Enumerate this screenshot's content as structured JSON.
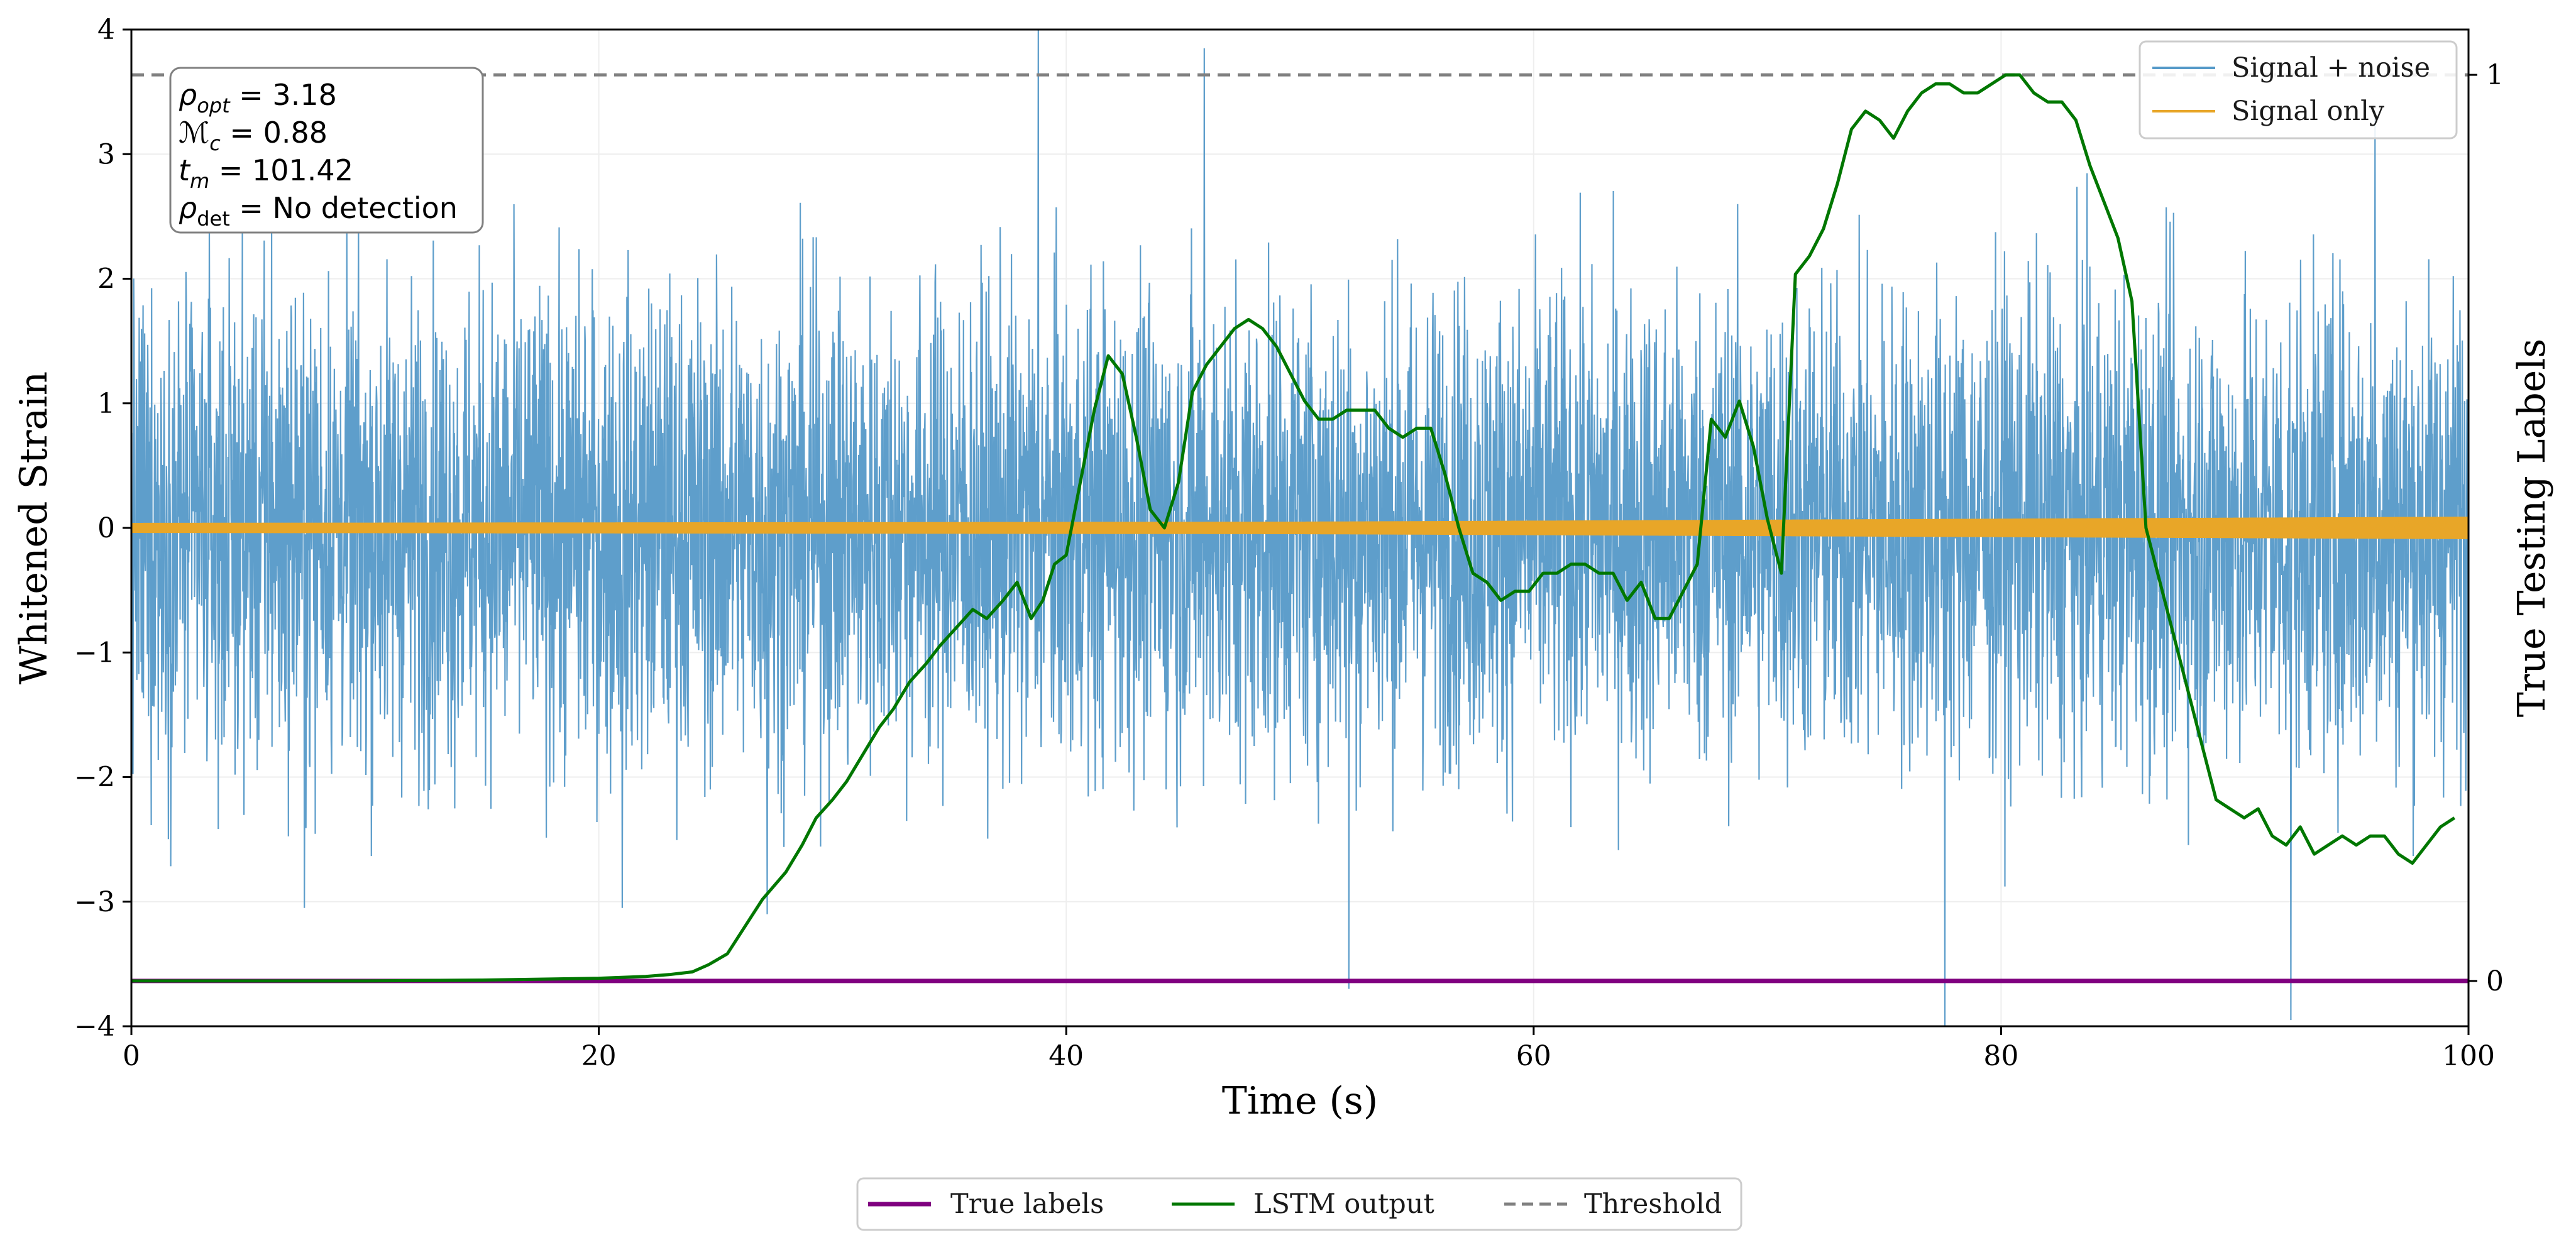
{
  "chart_data": {
    "type": "line",
    "xlabel": "Time (s)",
    "ylabel_left": "Whitened Strain",
    "ylabel_right": "True Testing Labels",
    "xlim": [
      0,
      100
    ],
    "ylim_left": [
      -4,
      4
    ],
    "ylim_right": [
      -0.05,
      1.05
    ],
    "x_ticks": [
      0,
      20,
      40,
      60,
      80,
      100
    ],
    "x_tick_labels": [
      "0",
      "20",
      "40",
      "60",
      "80",
      "100"
    ],
    "y_left_ticks": [
      -4,
      -3,
      -2,
      -1,
      0,
      1,
      2,
      3,
      4
    ],
    "y_left_tick_labels": [
      "−4",
      "−3",
      "−2",
      "−1",
      "0",
      "1",
      "2",
      "3",
      "4"
    ],
    "y_right_ticks": [
      0,
      1
    ],
    "y_right_tick_labels": [
      "0",
      "1"
    ],
    "grid": true,
    "annotation": {
      "lines": [
        {
          "sym": "ρ",
          "sub": "opt",
          "rest": " = 3.18"
        },
        {
          "sym": "ℳ",
          "sub": "c",
          "rest": " = 0.88"
        },
        {
          "sym": "t",
          "sub": "m",
          "rest": " = 101.42"
        },
        {
          "sym": "ρ",
          "sub": "det",
          "rest": " = No detection"
        }
      ]
    },
    "legend_top_right": [
      "Signal + noise",
      "Signal only"
    ],
    "legend_bottom": [
      "True labels",
      "LSTM output",
      "Threshold"
    ],
    "series": [
      {
        "name": "Signal + noise",
        "axis": "left",
        "color": "#5599c8",
        "typical_range": [
          -2.0,
          2.0
        ],
        "peaks": [
          [
            38.8,
            4.0
          ],
          [
            45.9,
            3.85
          ],
          [
            52.1,
            -3.7
          ],
          [
            77.6,
            -4.0
          ],
          [
            92.4,
            -3.95
          ],
          [
            27.2,
            -3.1
          ],
          [
            7.4,
            -3.05
          ],
          [
            21.0,
            -3.05
          ],
          [
            6.0,
            2.4
          ],
          [
            96.0,
            3.3
          ]
        ]
      },
      {
        "name": "Signal only",
        "axis": "left",
        "color": "#e8a628",
        "envelope": [
          [
            0,
            0.04
          ],
          [
            50,
            0.05
          ],
          [
            100,
            0.09
          ]
        ]
      },
      {
        "name": "True labels",
        "axis": "right",
        "color": "#800080",
        "x": [
          0,
          100
        ],
        "values": [
          0,
          0
        ]
      },
      {
        "name": "LSTM output",
        "axis": "right",
        "color": "#007700",
        "x": [
          0,
          10,
          15,
          20,
          22,
          23,
          24,
          24.7,
          25.5,
          26,
          27,
          28,
          28.7,
          29.3,
          30,
          30.6,
          31.3,
          32,
          32.6,
          33.3,
          34,
          34.6,
          35.3,
          36,
          36.6,
          37.3,
          37.9,
          38.5,
          39,
          39.5,
          40,
          40.6,
          41.2,
          41.8,
          42.4,
          43,
          43.6,
          44.2,
          44.8,
          45.4,
          46,
          46.6,
          47.2,
          47.8,
          48.4,
          49,
          49.6,
          50.2,
          50.8,
          51.4,
          52,
          52.6,
          53.2,
          53.8,
          54.4,
          55,
          55.6,
          56.2,
          56.8,
          57.4,
          58,
          58.6,
          59.2,
          59.8,
          60.4,
          61,
          61.6,
          62.2,
          62.8,
          63.4,
          64,
          64.6,
          65.2,
          65.8,
          66.4,
          67,
          67.6,
          68.2,
          68.8,
          69.4,
          70,
          70.6,
          71.2,
          71.8,
          72.4,
          73,
          73.6,
          74.2,
          74.8,
          75.4,
          76,
          76.6,
          77.2,
          77.8,
          78.4,
          79,
          79.6,
          80.2,
          80.8,
          81.4,
          82,
          82.6,
          83.2,
          83.8,
          84.4,
          85,
          85.6,
          86.2,
          86.8,
          87.4,
          88,
          88.6,
          89.2,
          89.8,
          90.4,
          91,
          91.6,
          92.2,
          92.8,
          93.4,
          94,
          94.6,
          95.2,
          95.8,
          96.4,
          97,
          97.6,
          98.2,
          98.8,
          99.4
        ],
        "values": [
          0.0,
          0.0,
          0.001,
          0.003,
          0.005,
          0.007,
          0.01,
          0.018,
          0.03,
          0.05,
          0.09,
          0.12,
          0.15,
          0.18,
          0.2,
          0.22,
          0.25,
          0.28,
          0.3,
          0.33,
          0.35,
          0.37,
          0.39,
          0.41,
          0.4,
          0.42,
          0.44,
          0.4,
          0.42,
          0.46,
          0.47,
          0.55,
          0.63,
          0.69,
          0.67,
          0.6,
          0.52,
          0.5,
          0.55,
          0.65,
          0.68,
          0.7,
          0.72,
          0.73,
          0.72,
          0.7,
          0.67,
          0.64,
          0.62,
          0.62,
          0.63,
          0.63,
          0.63,
          0.61,
          0.6,
          0.61,
          0.61,
          0.56,
          0.5,
          0.45,
          0.44,
          0.42,
          0.43,
          0.43,
          0.45,
          0.45,
          0.46,
          0.46,
          0.45,
          0.45,
          0.42,
          0.44,
          0.4,
          0.4,
          0.43,
          0.46,
          0.62,
          0.6,
          0.64,
          0.59,
          0.51,
          0.45,
          0.78,
          0.8,
          0.83,
          0.88,
          0.94,
          0.96,
          0.95,
          0.93,
          0.96,
          0.98,
          0.99,
          0.99,
          0.98,
          0.98,
          0.99,
          1.0,
          1.0,
          0.98,
          0.97,
          0.97,
          0.95,
          0.9,
          0.86,
          0.82,
          0.75,
          0.5,
          0.44,
          0.38,
          0.32,
          0.26,
          0.2,
          0.19,
          0.18,
          0.19,
          0.16,
          0.15,
          0.17,
          0.14,
          0.15,
          0.16,
          0.15,
          0.16,
          0.16,
          0.14,
          0.13,
          0.15,
          0.17,
          0.18
        ]
      },
      {
        "name": "Threshold",
        "axis": "right",
        "color": "#808080",
        "style": "dashed",
        "x": [
          0,
          100
        ],
        "values": [
          1.0,
          1.0
        ]
      }
    ]
  }
}
